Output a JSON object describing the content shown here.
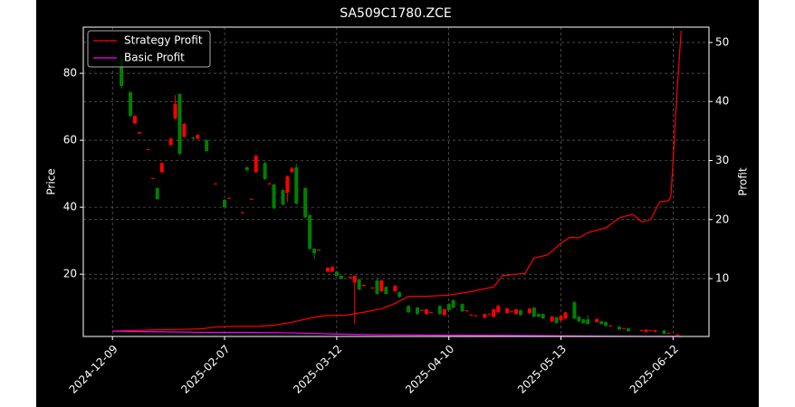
{
  "chart_data": {
    "type": "candlestick",
    "title": "SA509C1780.ZCE",
    "ylabel": "Price",
    "y2label": "Profit",
    "xlim": [
      -6.5,
      133
    ],
    "ylim": [
      1.4,
      93.8
    ],
    "y2lim": [
      0.2,
      52.6
    ],
    "xticks": [
      {
        "value": 0,
        "label": "2024-12-09"
      },
      {
        "value": 25,
        "label": "2025-02-07"
      },
      {
        "value": 50,
        "label": "2025-03-12"
      },
      {
        "value": 75,
        "label": "2025-04-10"
      },
      {
        "value": 100,
        "label": "2025-05-13"
      },
      {
        "value": 125,
        "label": "2025-06-12"
      }
    ],
    "yticks": [
      20,
      40,
      60,
      80
    ],
    "y2ticks": [
      10,
      20,
      30,
      40,
      50
    ],
    "grid": true,
    "legend": "upper left",
    "up_color": "#ff0000",
    "down_color": "#008000",
    "candles": {
      "x": [
        2,
        4,
        5,
        6,
        8,
        9,
        10,
        11,
        13,
        14,
        15,
        16,
        18,
        19,
        21,
        23,
        25,
        26,
        29,
        30,
        31,
        32,
        34,
        35,
        36,
        38,
        39,
        40,
        41,
        43,
        44,
        45,
        46,
        48,
        49,
        50,
        51,
        53,
        54,
        55,
        56,
        58,
        59,
        60,
        61,
        63,
        64,
        66,
        68,
        69,
        70,
        71,
        73,
        74,
        75,
        76,
        78,
        79,
        80,
        81,
        83,
        84,
        85,
        86,
        88,
        89,
        90,
        91,
        93,
        94,
        95,
        96,
        98,
        99,
        100,
        101,
        103,
        104,
        105,
        106,
        108,
        109,
        110,
        111,
        113,
        114,
        115,
        118,
        119,
        120,
        121,
        123,
        124,
        126
      ],
      "open": [
        85,
        74.3,
        65,
        62,
        57.2,
        48.5,
        45.7,
        50.5,
        58.6,
        66.5,
        73.8,
        61,
        60.8,
        60.5,
        60,
        47,
        42.2,
        42.6,
        38.4,
        51.9,
        42.3,
        50.5,
        53.2,
        47,
        46.8,
        45.1,
        44.3,
        50.5,
        51.9,
        45.7,
        37.6,
        27.6,
        27.2,
        20.8,
        20.8,
        20.8,
        19.5,
        19.1,
        17.5,
        18.4,
        16.5,
        15.9,
        18.1,
        14.9,
        16.2,
        14.9,
        14.6,
        10.5,
        10,
        9.2,
        8.1,
        8.6,
        10.5,
        7.8,
        11.1,
        12.2,
        11.1,
        9,
        7.8,
        7.6,
        7,
        8.1,
        7.3,
        8.6,
        8.4,
        8.8,
        8.1,
        9.2,
        8.4,
        10,
        8.1,
        8.1,
        5.9,
        7.1,
        6.2,
        6.8,
        11.6,
        7.3,
        6.5,
        6.5,
        5.7,
        5.9,
        5.7,
        4.6,
        4.3,
        3.8,
        3.8,
        3.2,
        2.8,
        3.2,
        2.8,
        3.2,
        2.4,
        1.9
      ],
      "high": [
        86,
        74.8,
        67.5,
        62.6,
        57.5,
        48.8,
        45.9,
        53.4,
        60.7,
        73.5,
        74,
        65.2,
        61,
        61.8,
        60.3,
        47.2,
        42.4,
        42.9,
        38.6,
        52.2,
        42.6,
        55.6,
        53.6,
        47.3,
        47,
        45.6,
        49.5,
        52,
        53,
        46,
        37.9,
        27.8,
        27.5,
        22.1,
        22.4,
        21,
        19.7,
        19.4,
        19.7,
        18.7,
        17,
        16.1,
        19,
        18.3,
        16.4,
        16.7,
        14.9,
        10.8,
        10.3,
        9.4,
        9.7,
        8.8,
        10.8,
        9.7,
        11.4,
        12.5,
        11.3,
        9.3,
        8,
        7.8,
        8.2,
        8.3,
        9.7,
        10.9,
        10,
        9,
        9.7,
        9.4,
        10,
        10.2,
        8.3,
        8.3,
        7.6,
        7.3,
        7.8,
        8.8,
        11.9,
        7.5,
        6.7,
        7.7,
        6.8,
        6.1,
        5.9,
        4.8,
        4.5,
        4,
        4,
        3.4,
        3.6,
        3.4,
        3.4,
        3.4,
        2.6,
        2.1
      ],
      "low": [
        75.5,
        66.8,
        64.9,
        62,
        57.1,
        48.5,
        42.2,
        50.3,
        58.4,
        66.3,
        55.5,
        60.8,
        60.3,
        60.3,
        56.6,
        46.8,
        39.8,
        42.5,
        38.2,
        50.8,
        42.2,
        50.3,
        48.2,
        46.8,
        39.4,
        40.5,
        41.5,
        50.3,
        40.8,
        36.8,
        27.3,
        24.5,
        27,
        20.5,
        20.5,
        19.3,
        18.4,
        19,
        5.1,
        15.2,
        16.3,
        15.7,
        13.9,
        14.6,
        13.9,
        14.7,
        13,
        8.4,
        7.9,
        9,
        7.9,
        8.4,
        7.9,
        7.6,
        9,
        9.8,
        8.7,
        8.8,
        7.6,
        7.4,
        6.8,
        7.9,
        7.1,
        8.4,
        8.2,
        8.6,
        7.9,
        7.6,
        8.2,
        7.1,
        7.1,
        6.6,
        5.7,
        5.2,
        5.9,
        6.6,
        6.6,
        5.7,
        5.2,
        5,
        5.5,
        5,
        4.4,
        4.4,
        3.3,
        3.6,
        2.8,
        3,
        2.6,
        3,
        2.6,
        2,
        2.2,
        1.7
      ],
      "close": [
        76.2,
        67.3,
        67.3,
        62.4,
        57.3,
        48.7,
        42.4,
        53.2,
        60.5,
        70.8,
        56,
        64.9,
        60.5,
        61.6,
        56.8,
        47.1,
        40,
        42.8,
        38.5,
        51.1,
        42.5,
        55.4,
        48.4,
        47.1,
        39.7,
        40.8,
        49.2,
        51.6,
        41.1,
        37,
        27.6,
        26.2,
        27.3,
        21.9,
        22.2,
        19.5,
        18.6,
        19.2,
        19.5,
        15.4,
        16.8,
        16,
        14.1,
        18.1,
        14.1,
        16.5,
        13.2,
        8.6,
        8.1,
        9.3,
        9.5,
        8.7,
        8.1,
        9.5,
        9.2,
        10,
        8.9,
        9.2,
        7.9,
        7.7,
        8.1,
        8.2,
        9.5,
        10.5,
        9.7,
        8.9,
        9.5,
        7.8,
        9.7,
        7.3,
        7.3,
        6.8,
        7.3,
        5.4,
        7.6,
        8.6,
        6.8,
        5.9,
        5.4,
        5.1,
        6.6,
        5.1,
        4.6,
        4.7,
        3.5,
        3.9,
        3,
        3.3,
        3.4,
        3.3,
        3.2,
        2.2,
        2.5,
        2
      ]
    },
    "series": [
      {
        "name": "Strategy Profit",
        "color": "#ff0000",
        "axis": "y2",
        "x": [
          0,
          8,
          15,
          20,
          23,
          27,
          32,
          36,
          40,
          44,
          47,
          52,
          56,
          60,
          63,
          66,
          70,
          75,
          80,
          85,
          87,
          92,
          94,
          97,
          100,
          102,
          104,
          106,
          110,
          113,
          116,
          118,
          120,
          122,
          124,
          124.5,
          125,
          125.5,
          126,
          126.8
        ],
        "values": [
          1.1,
          1.3,
          1.4,
          1.5,
          1.8,
          1.9,
          1.9,
          2.1,
          2.6,
          3.3,
          3.7,
          3.8,
          4.3,
          4.9,
          5.8,
          7,
          7,
          7.2,
          7.8,
          8.6,
          10.5,
          10.9,
          13.5,
          14,
          16,
          17,
          16.9,
          17.8,
          18.6,
          20.3,
          20.9,
          19.6,
          20,
          23,
          23.2,
          24,
          30,
          37,
          43,
          52
        ]
      },
      {
        "name": "Basic Profit",
        "color": "#ff00ff",
        "axis": "y2",
        "x": [
          0,
          10,
          20,
          30,
          40,
          50,
          60,
          75,
          90,
          100,
          110,
          120,
          126.8
        ],
        "values": [
          1.1,
          1.0,
          0.9,
          0.9,
          0.8,
          0.6,
          0.5,
          0.4,
          0.35,
          0.3,
          0.25,
          0.2,
          0.2
        ]
      }
    ]
  }
}
